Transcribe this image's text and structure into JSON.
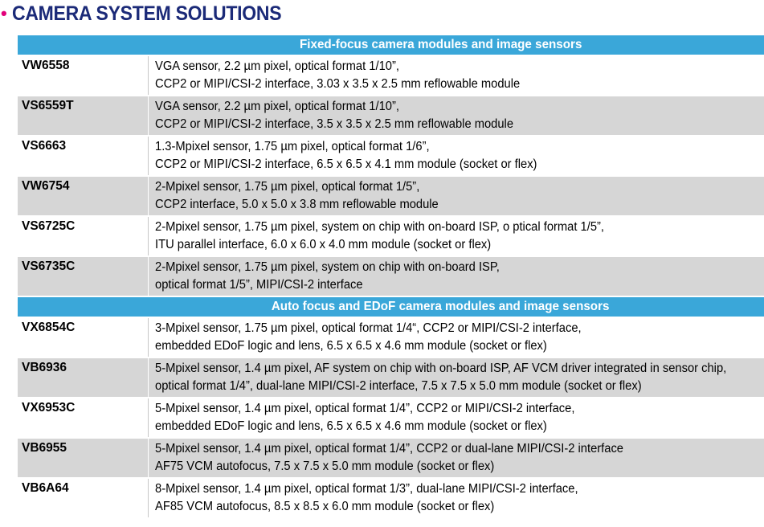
{
  "title": {
    "bullet": "•",
    "text": "CAMERA SYSTEM SOLUTIONS"
  },
  "colors": {
    "title": "#1b2a78",
    "bullet": "#e2007a",
    "header_bg": "#3aa7d9",
    "row_gray": "#d6d6d6"
  },
  "sections": [
    {
      "header": "Fixed-focus camera modules and image sensors",
      "rows": [
        {
          "code": "VW6558",
          "line1": "VGA sensor, 2.2 µm pixel, optical format 1/10”,",
          "line2": "CCP2 or MIPI/CSI-2 interface, 3.03 x 3.5 x 2.5 mm reflowable module"
        },
        {
          "code": "VS6559T",
          "line1": "VGA sensor, 2.2 µm pixel, optical format 1/10”,",
          "line2": "CCP2 or MIPI/CSI-2 interface, 3.5 x 3.5 x 2.5 mm reflowable module"
        },
        {
          "code": "VS6663",
          "line1": "1.3-Mpixel sensor, 1.75 µm pixel, optical format 1/6”,",
          "line2": "CCP2 or MIPI/CSI-2 interface, 6.5 x 6.5 x 4.1 mm module (socket or flex)"
        },
        {
          "code": "VW6754",
          "line1": "2-Mpixel sensor, 1.75 µm pixel, optical format 1/5”,",
          "line2": "CCP2 interface, 5.0 x 5.0 x 3.8 mm reflowable module"
        },
        {
          "code": "VS6725C",
          "line1": "2-Mpixel sensor, 1.75 µm pixel, system on chip with on-board ISP, o ptical format 1/5”,",
          "line2": "ITU parallel interface, 6.0 x 6.0 x 4.0 mm module (socket or flex)"
        },
        {
          "code": "VS6735C",
          "line1": "2-Mpixel sensor, 1.75 µm pixel, system on chip with on-board ISP,",
          "line2": "optical format 1/5”, MIPI/CSI-2 interface"
        }
      ]
    },
    {
      "header": "Auto focus and EDoF camera modules and image sensors",
      "rows": [
        {
          "code": "VX6854C",
          "line1": "3-Mpixel sensor, 1.75 µm pixel, optical format 1/4“, CCP2 or MIPI/CSI-2 interface,",
          "line2": "embedded EDoF logic and lens, 6.5 x 6.5 x 4.6 mm module (socket or flex)"
        },
        {
          "code": "VB6936",
          "line1": "5-Mpixel sensor, 1.4 µm pixel, AF system on chip with on-board ISP, AF VCM driver integrated in sensor chip,",
          "line2": "optical format 1/4”, dual-lane MIPI/CSI-2 interface, 7.5 x 7.5 x 5.0 mm module (socket or flex)"
        },
        {
          "code": "VX6953C",
          "line1": "5-Mpixel sensor, 1.4 µm pixel, optical format 1/4”, CCP2 or MIPI/CSI-2 interface,",
          "line2": "embedded EDoF logic and lens, 6.5 x 6.5 x 4.6 mm module (socket or flex)"
        },
        {
          "code": "VB6955",
          "line1": "5-Mpixel sensor, 1.4 µm pixel, optical format 1/4”, CCP2 or dual-lane MIPI/CSI-2 interface",
          "line2": "AF75 VCM autofocus, 7.5 x 7.5 x 5.0 mm module (socket or flex)"
        },
        {
          "code": "VB6A64",
          "line1": "8-Mpixel sensor, 1.4 µm pixel, optical format 1/3”, dual-lane MIPI/CSI-2 interface,",
          "line2": "AF85 VCM autofocus, 8.5 x 8.5 x 6.0 mm module (socket or flex)"
        }
      ]
    }
  ]
}
